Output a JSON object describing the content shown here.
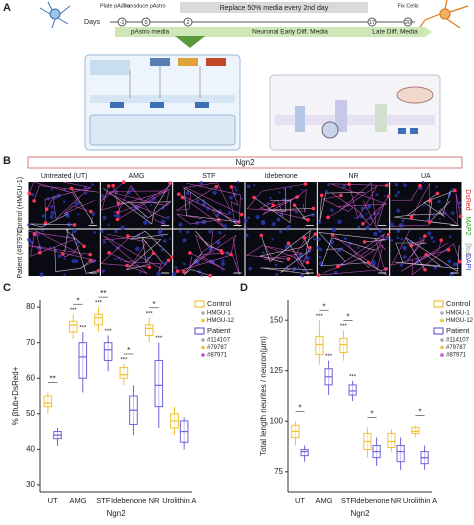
{
  "panels": {
    "a": "A",
    "b": "B",
    "c": "C",
    "d": "D"
  },
  "timeline": {
    "days_label": "Days",
    "days": [
      "-1",
      "0",
      "2",
      "17",
      "20"
    ],
    "events": [
      "Plate pAstro",
      "Transduce pAstro",
      "Fix Cells"
    ],
    "banner": "Replace 50% media every 2nd day",
    "media": [
      "pAstro media",
      "Neuronal Early Diff. Media",
      "Late Diff. Media"
    ]
  },
  "imaging": {
    "group": "Ngn2",
    "columns": [
      "Untreated (UT)",
      "AMG",
      "STF",
      "Idebenone",
      "NR",
      "UA"
    ],
    "rows": [
      "Control (HMGU-1)",
      "Patient (#87971)"
    ],
    "channels": [
      "DsRed",
      "MAP2",
      "βtub",
      "DAPI"
    ]
  },
  "chart_data": [
    {
      "type": "box",
      "xlabel": "Ngn2",
      "ylabel": "% βtub+DsRed+",
      "categories": [
        "UT",
        "AMG",
        "STF",
        "Idebenone",
        "NR",
        "Urolithin A"
      ],
      "ylim": [
        28,
        82
      ],
      "yticks": [
        30,
        40,
        50,
        60,
        70,
        80
      ],
      "significance": [
        "**",
        "*",
        "**",
        "*",
        "*",
        null
      ],
      "series": [
        {
          "name": "Control",
          "color": "#f2c230",
          "members": [
            "HMGU-1",
            "HMGU-12"
          ],
          "stars": [
            null,
            "***",
            "***",
            "***",
            "***",
            null
          ],
          "boxes": [
            {
              "min": 50,
              "q1": 52,
              "median": 53,
              "q3": 55,
              "max": 56
            },
            {
              "min": 71,
              "q1": 73,
              "median": 75,
              "q3": 76,
              "max": 78
            },
            {
              "min": 73,
              "q1": 75,
              "median": 77,
              "q3": 78,
              "max": 80
            },
            {
              "min": 58,
              "q1": 60,
              "median": 61,
              "q3": 63,
              "max": 64
            },
            {
              "min": 70,
              "q1": 72,
              "median": 74,
              "q3": 75,
              "max": 77
            },
            {
              "min": 44,
              "q1": 46,
              "median": 48,
              "q3": 50,
              "max": 52
            }
          ]
        },
        {
          "name": "Patient",
          "color": "#6f63d8",
          "members": [
            "#114107",
            "#79787",
            "#87971"
          ],
          "stars": [
            null,
            "***",
            "***",
            null,
            "***",
            null
          ],
          "boxes": [
            {
              "min": 41,
              "q1": 43,
              "median": 44,
              "q3": 45,
              "max": 46
            },
            {
              "min": 56,
              "q1": 60,
              "median": 66,
              "q3": 70,
              "max": 73
            },
            {
              "min": 62,
              "q1": 65,
              "median": 68,
              "q3": 70,
              "max": 72
            },
            {
              "min": 44,
              "q1": 47,
              "median": 51,
              "q3": 55,
              "max": 58
            },
            {
              "min": 46,
              "q1": 52,
              "median": 58,
              "q3": 65,
              "max": 70
            },
            {
              "min": 40,
              "q1": 42,
              "median": 45,
              "q3": 48,
              "max": 49
            }
          ]
        }
      ]
    },
    {
      "type": "box",
      "xlabel": "Ngn2",
      "ylabel": "Total length neurites / neuron(μm)",
      "categories": [
        "UT",
        "AMG",
        "STF",
        "Idebenone",
        "NR",
        "Urolithin A"
      ],
      "ylim": [
        65,
        160
      ],
      "yticks": [
        75,
        100,
        125,
        150
      ],
      "significance": [
        "*",
        "*",
        "*",
        "*",
        null,
        "*"
      ],
      "series": [
        {
          "name": "Control",
          "color": "#f2c230",
          "members": [
            "HMGU-1",
            "HMGU-12"
          ],
          "stars": [
            null,
            "***",
            "***",
            null,
            null,
            null
          ],
          "boxes": [
            {
              "min": 88,
              "q1": 92,
              "median": 95,
              "q3": 98,
              "max": 100
            },
            {
              "min": 128,
              "q1": 133,
              "median": 138,
              "q3": 142,
              "max": 150
            },
            {
              "min": 130,
              "q1": 134,
              "median": 138,
              "q3": 141,
              "max": 145
            },
            {
              "min": 82,
              "q1": 86,
              "median": 90,
              "q3": 94,
              "max": 97
            },
            {
              "min": 85,
              "q1": 87,
              "median": 90,
              "q3": 94,
              "max": 96
            },
            {
              "min": 92,
              "q1": 94,
              "median": 95,
              "q3": 97,
              "max": 98
            }
          ]
        },
        {
          "name": "Patient",
          "color": "#6f63d8",
          "members": [
            "#114107",
            "#79787",
            "#87971"
          ],
          "stars": [
            null,
            "***",
            "***",
            null,
            null,
            null
          ],
          "boxes": [
            {
              "min": 80,
              "q1": 83,
              "median": 85,
              "q3": 86,
              "max": 88
            },
            {
              "min": 113,
              "q1": 118,
              "median": 122,
              "q3": 126,
              "max": 130
            },
            {
              "min": 110,
              "q1": 113,
              "median": 115,
              "q3": 118,
              "max": 120
            },
            {
              "min": 78,
              "q1": 82,
              "median": 85,
              "q3": 88,
              "max": 92
            },
            {
              "min": 76,
              "q1": 80,
              "median": 85,
              "q3": 88,
              "max": 92
            },
            {
              "min": 76,
              "q1": 79,
              "median": 82,
              "q3": 85,
              "max": 88
            }
          ]
        }
      ]
    }
  ]
}
